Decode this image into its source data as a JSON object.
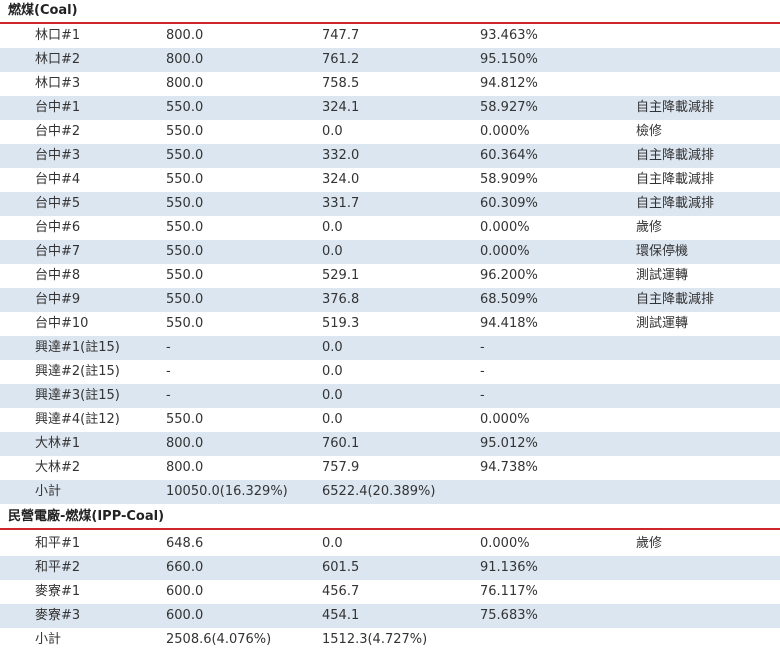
{
  "sections": [
    {
      "title": "燃煤(Coal)",
      "rows": [
        [
          "林口#1",
          "800.0",
          "747.7",
          "93.463%"
        ],
        [
          "林口#2",
          "800.0",
          "761.2",
          "95.150%"
        ],
        [
          "林口#3",
          "800.0",
          "758.5",
          "94.812%"
        ],
        [
          "台中#1",
          "550.0",
          "324.1",
          "58.927%",
          "自主降載減排"
        ],
        [
          "台中#2",
          "550.0",
          "0.0",
          "0.000%",
          "檢修"
        ],
        [
          "台中#3",
          "550.0",
          "332.0",
          "60.364%",
          "自主降載減排"
        ],
        [
          "台中#4",
          "550.0",
          "324.0",
          "58.909%",
          "自主降載減排"
        ],
        [
          "台中#5",
          "550.0",
          "331.7",
          "60.309%",
          "自主降載減排"
        ],
        [
          "台中#6",
          "550.0",
          "0.0",
          "0.000%",
          "歲修"
        ],
        [
          "台中#7",
          "550.0",
          "0.0",
          "0.000%",
          "環保停機"
        ],
        [
          "台中#8",
          "550.0",
          "529.1",
          "96.200%",
          "測試運轉"
        ],
        [
          "台中#9",
          "550.0",
          "376.8",
          "68.509%",
          "自主降載減排"
        ],
        [
          "台中#10",
          "550.0",
          "519.3",
          "94.418%",
          "測試運轉"
        ],
        [
          "興達#1(註15)",
          "-",
          "0.0",
          "-"
        ],
        [
          "興達#2(註15)",
          "-",
          "0.0",
          "-"
        ],
        [
          "興達#3(註15)",
          "-",
          "0.0",
          "-"
        ],
        [
          "興達#4(註12)",
          "550.0",
          "0.0",
          "0.000%"
        ],
        [
          "大林#1",
          "800.0",
          "760.1",
          "95.012%"
        ],
        [
          "大林#2",
          "800.0",
          "757.9",
          "94.738%"
        ],
        [
          "小計",
          "10050.0(16.329%)",
          "6522.4(20.389%)"
        ]
      ]
    },
    {
      "title": "民營電廠-燃煤(IPP-Coal)",
      "rows": [
        [
          "和平#1",
          "648.6",
          "0.0",
          "0.000%",
          "歲修"
        ],
        [
          "和平#2",
          "660.0",
          "601.5",
          "91.136%"
        ],
        [
          "麥寮#1",
          "600.0",
          "456.7",
          "76.117%"
        ],
        [
          "麥寮#3",
          "600.0",
          "454.1",
          "75.683%"
        ],
        [
          "小計",
          "2508.6(4.076%)",
          "1512.3(4.727%)"
        ]
      ]
    }
  ]
}
